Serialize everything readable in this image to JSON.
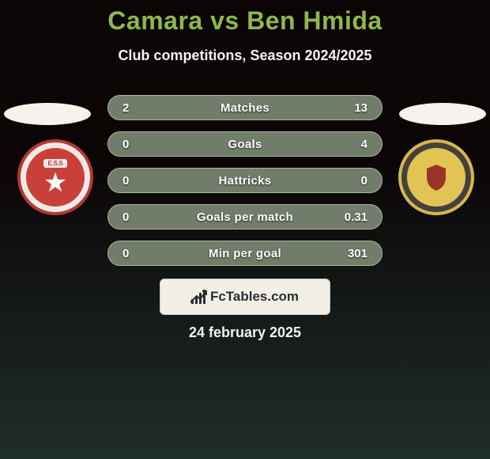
{
  "colors": {
    "bg_top": "#0b0506",
    "bg_bottom": "#1f2d29",
    "title": "#8fb84a",
    "subtitle": "#f5f5f2",
    "text_white": "#f2f2ef",
    "shadow_ellipse": "#f4f4ed",
    "stat_row_bg": "#727c6a",
    "stat_row_border": "#aeb49e",
    "stat_text": "#ffffff",
    "logo_box_bg": "#f1efe6",
    "logo_box_border": "#c8c7bd",
    "logo_text": "#2b2e32",
    "badge_left_outer": "#efeae7",
    "badge_left_border": "#b33a34",
    "badge_left_inner": "#c84038",
    "badge_left_star": "#ffffff",
    "badge_left_label_bg": "#efeae7",
    "badge_left_label_text": "#b33a34",
    "badge_right_outer": "#424140",
    "badge_right_border": "#d8b84a",
    "badge_right_inner": "#e2c454",
    "badge_right_center": "#9a332a"
  },
  "title": "Camara vs Ben Hmida",
  "subtitle": "Club competitions, Season 2024/2025",
  "date": "24 february 2025",
  "badgeLeft": {
    "topLabel": "E.S.S"
  },
  "logo": {
    "text": "FcTables.com"
  },
  "stats": {
    "rows": [
      {
        "left": "2",
        "label": "Matches",
        "right": "13"
      },
      {
        "left": "0",
        "label": "Goals",
        "right": "4"
      },
      {
        "left": "0",
        "label": "Hattricks",
        "right": "0"
      },
      {
        "left": "0",
        "label": "Goals per match",
        "right": "0.31"
      },
      {
        "left": "0",
        "label": "Min per goal",
        "right": "301"
      }
    ]
  },
  "layout": {
    "title_fontsize": 32,
    "subtitle_fontsize": 18,
    "stat_fontsize": 15,
    "stat_row_height": 32,
    "stat_gap": 14,
    "date_fontsize": 18
  }
}
